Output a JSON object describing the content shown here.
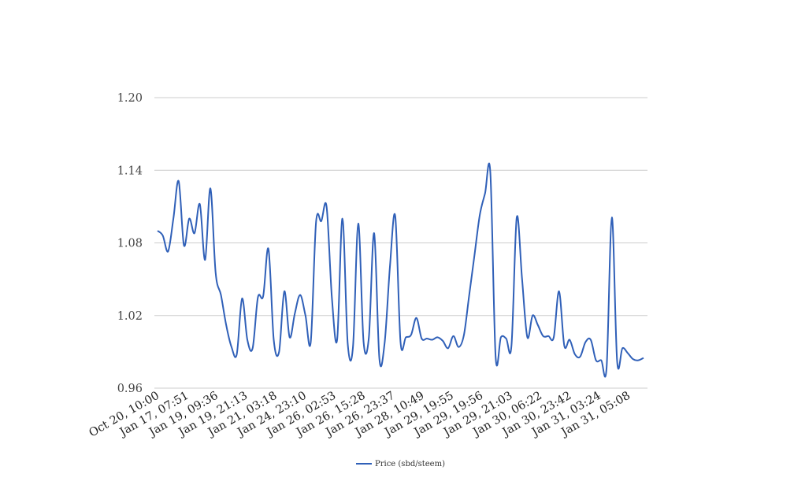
{
  "chart_data": {
    "type": "line",
    "title": "",
    "xlabel": "",
    "ylabel": "",
    "ylim": [
      0.96,
      1.2
    ],
    "yticks": [
      "0.96",
      "1.02",
      "1.08",
      "1.14",
      "1.20"
    ],
    "ytick_values": [
      0.96,
      1.02,
      1.08,
      1.14,
      1.2
    ],
    "xtick_labels": [
      "Oct 20, 10:00",
      "Jan 17, 07:51",
      "Jan 19, 09:36",
      "Jan 19, 21:13",
      "Jan 21, 03:18",
      "Jan 24, 23:10",
      "Jan 26, 02:53",
      "Jan 26, 15:28",
      "Jan 26, 23:37",
      "Jan 28, 10:49",
      "Jan 29, 19:55",
      "Jan 29, 19:56",
      "Jan 29, 21:03",
      "Jan 30, 06:22",
      "Jan 30, 23:42",
      "Jan 31, 03:24",
      "Jan 31, 05:08"
    ],
    "grid": true,
    "legend_position": "bottom-center",
    "series": [
      {
        "name": "Price (sbd/steem)",
        "color": "#3060b8",
        "values": [
          1.09,
          1.086,
          1.073,
          1.1,
          1.131,
          1.078,
          1.1,
          1.088,
          1.112,
          1.066,
          1.125,
          1.055,
          1.037,
          1.012,
          0.994,
          0.988,
          1.034,
          1.0,
          0.993,
          1.035,
          1.036,
          1.075,
          1.0,
          0.99,
          1.04,
          1.002,
          1.022,
          1.037,
          1.02,
          0.998,
          1.097,
          1.098,
          1.11,
          1.035,
          1.0,
          1.1,
          0.997,
          0.994,
          1.096,
          0.998,
          1.002,
          1.088,
          0.984,
          0.998,
          1.061,
          1.102,
          0.998,
          1.002,
          1.004,
          1.018,
          1.001,
          1.001,
          1.0,
          1.002,
          0.999,
          0.993,
          1.003,
          0.994,
          1.004,
          1.037,
          1.07,
          1.103,
          1.121,
          1.138,
          0.986,
          1.002,
          1.001,
          0.995,
          1.101,
          1.05,
          1.002,
          1.02,
          1.012,
          1.003,
          1.003,
          1.002,
          1.04,
          0.995,
          1.0,
          0.988,
          0.986,
          0.998,
          1.0,
          0.983,
          0.983,
          0.977,
          1.101,
          0.982,
          0.993,
          0.989,
          0.984,
          0.983,
          0.985
        ]
      }
    ]
  }
}
